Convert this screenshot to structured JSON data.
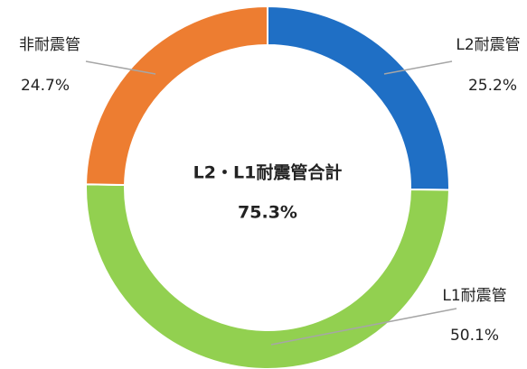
{
  "chart_data": {
    "type": "donut",
    "categories": [
      "L2耐震管",
      "L1耐震管",
      "非耐震管"
    ],
    "values": [
      25.2,
      50.1,
      24.7
    ],
    "value_labels": [
      "25.2%",
      "50.1%",
      "24.7%"
    ],
    "colors": [
      "#1f6fc5",
      "#92d050",
      "#ed7d31"
    ],
    "center_label": "L2・L1耐震管合計",
    "center_value_label": "75.3%"
  }
}
